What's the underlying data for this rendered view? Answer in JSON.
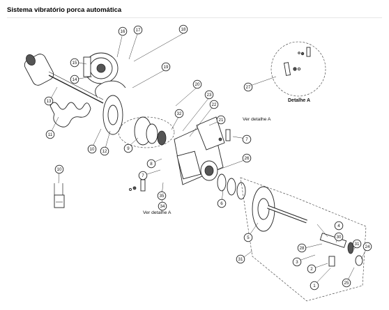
{
  "title": "Sistema vibratório porca automática",
  "labels": {
    "detail_title": "Detalhe A",
    "see_detail_1": "Ver detalhe A",
    "see_detail_2": "Ver detalhe A"
  },
  "parts": [
    "1",
    "2",
    "3",
    "4",
    "5",
    "6",
    "7",
    "7",
    "8",
    "9",
    "10",
    "11",
    "12",
    "13",
    "14",
    "15",
    "16",
    "17",
    "18",
    "19",
    "20",
    "21",
    "22",
    "23",
    "24",
    "25",
    "26",
    "27",
    "28",
    "29",
    "30",
    "31",
    "32",
    "33",
    "34",
    "35"
  ]
}
